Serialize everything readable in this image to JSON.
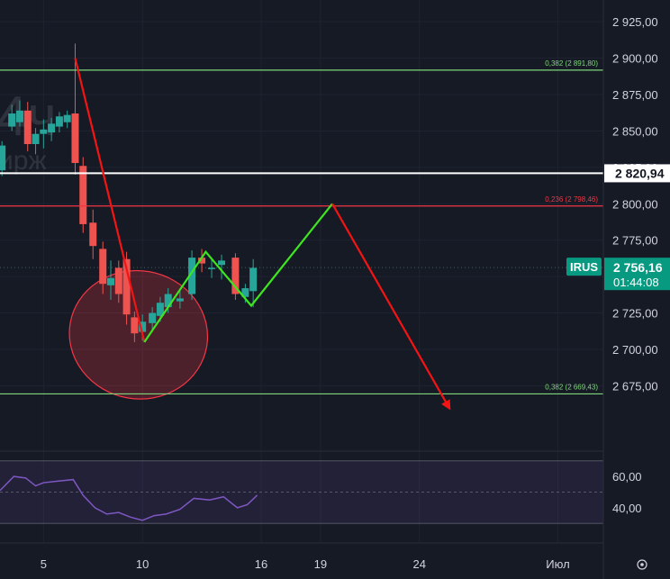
{
  "chart_data": {
    "type": "candlestick",
    "symbol": "IRUS",
    "watermark": {
      "interval": "4ч",
      "subtitle": "ирж"
    },
    "colors": {
      "background": "#161a25",
      "up": "#26a69a",
      "down": "#ef5350",
      "drawing_red": "#f41414",
      "drawing_green": "#3ee620",
      "fib_green": "#7fd67a",
      "fib_red": "#f23645",
      "price_label": "#089981",
      "rsi": "#7e57c2"
    },
    "price_axis": {
      "ylim": [
        2640,
        2935
      ],
      "ticks": [
        "2 925,00",
        "2 900,00",
        "2 875,00",
        "2 850,00",
        "2 825,00",
        "2 800,00",
        "2 775,00",
        "2 750,00",
        "2 725,00",
        "2 700,00",
        "2 675,00"
      ],
      "tick_values": [
        2925,
        2900,
        2875,
        2850,
        2825,
        2800,
        2775,
        2750,
        2725,
        2700,
        2675
      ]
    },
    "time_axis": {
      "xlim": [
        2.8,
        33.3
      ],
      "labels": [
        {
          "x": 5,
          "text": "5"
        },
        {
          "x": 10,
          "text": "10"
        },
        {
          "x": 16,
          "text": "16"
        },
        {
          "x": 19,
          "text": "19"
        },
        {
          "x": 24,
          "text": "24"
        },
        {
          "x": 31,
          "text": "Июл"
        }
      ]
    },
    "candles": [
      {
        "t": 2.9,
        "o": 2823,
        "h": 2843,
        "l": 2819,
        "c": 2840
      },
      {
        "t": 3.4,
        "o": 2853,
        "h": 2868,
        "l": 2850,
        "c": 2862
      },
      {
        "t": 3.8,
        "o": 2856,
        "h": 2871,
        "l": 2853,
        "c": 2864
      },
      {
        "t": 4.2,
        "o": 2864,
        "h": 2870,
        "l": 2836,
        "c": 2841
      },
      {
        "t": 4.6,
        "o": 2841,
        "h": 2852,
        "l": 2834,
        "c": 2848
      },
      {
        "t": 5.0,
        "o": 2848,
        "h": 2858,
        "l": 2838,
        "c": 2851
      },
      {
        "t": 5.4,
        "o": 2849,
        "h": 2859,
        "l": 2843,
        "c": 2855
      },
      {
        "t": 5.8,
        "o": 2853,
        "h": 2863,
        "l": 2849,
        "c": 2860
      },
      {
        "t": 6.2,
        "o": 2856,
        "h": 2864,
        "l": 2852,
        "c": 2861
      },
      {
        "t": 6.6,
        "o": 2862,
        "h": 2910,
        "l": 2820,
        "c": 2828
      },
      {
        "t": 7.0,
        "o": 2826,
        "h": 2832,
        "l": 2780,
        "c": 2786
      },
      {
        "t": 7.5,
        "o": 2787,
        "h": 2796,
        "l": 2762,
        "c": 2771
      },
      {
        "t": 8.0,
        "o": 2769,
        "h": 2774,
        "l": 2738,
        "c": 2745
      },
      {
        "t": 8.4,
        "o": 2744,
        "h": 2761,
        "l": 2734,
        "c": 2749
      },
      {
        "t": 8.8,
        "o": 2756,
        "h": 2761,
        "l": 2732,
        "c": 2738
      },
      {
        "t": 9.2,
        "o": 2762,
        "h": 2767,
        "l": 2717,
        "c": 2724
      },
      {
        "t": 9.6,
        "o": 2722,
        "h": 2726,
        "l": 2705,
        "c": 2711
      },
      {
        "t": 10.0,
        "o": 2712,
        "h": 2724,
        "l": 2706,
        "c": 2719
      },
      {
        "t": 10.5,
        "o": 2718,
        "h": 2729,
        "l": 2712,
        "c": 2725
      },
      {
        "t": 10.9,
        "o": 2723,
        "h": 2736,
        "l": 2719,
        "c": 2732
      },
      {
        "t": 11.3,
        "o": 2729,
        "h": 2742,
        "l": 2725,
        "c": 2738
      },
      {
        "t": 11.9,
        "o": 2733,
        "h": 2740,
        "l": 2728,
        "c": 2735
      },
      {
        "t": 12.5,
        "o": 2738,
        "h": 2768,
        "l": 2734,
        "c": 2763
      },
      {
        "t": 13.0,
        "o": 2763,
        "h": 2769,
        "l": 2753,
        "c": 2759
      },
      {
        "t": 13.5,
        "o": 2756,
        "h": 2762,
        "l": 2749,
        "c": 2756
      },
      {
        "t": 14.0,
        "o": 2758,
        "h": 2765,
        "l": 2748,
        "c": 2761
      },
      {
        "t": 14.7,
        "o": 2763,
        "h": 2766,
        "l": 2734,
        "c": 2738
      },
      {
        "t": 15.2,
        "o": 2736,
        "h": 2745,
        "l": 2732,
        "c": 2742
      },
      {
        "t": 15.6,
        "o": 2740,
        "h": 2762,
        "l": 2729,
        "c": 2756
      }
    ],
    "horizontal_lines": [
      {
        "price": 2891.8,
        "label": "0,382 (2 891,80)",
        "color": "#7fd67a"
      },
      {
        "price": 2798.46,
        "label": "0,236 (2 798,46)",
        "color": "#f23645"
      },
      {
        "price": 2669.43,
        "label": "0,382 (2 669,43)",
        "color": "#7fd67a"
      },
      {
        "price": 2820.94,
        "label": "2 820,94",
        "color": "#ffffff"
      }
    ],
    "current_price": {
      "value": 2756.16,
      "label": "2 756,16",
      "countdown": "01:44:08",
      "symbol": "IRUS"
    },
    "drawings": {
      "red_down": [
        {
          "t": 6.6,
          "p": 2900
        },
        {
          "t": 10.1,
          "p": 2705
        }
      ],
      "green_path": [
        {
          "t": 10.1,
          "p": 2705
        },
        {
          "t": 13.2,
          "p": 2767
        },
        {
          "t": 15.5,
          "p": 2730
        },
        {
          "t": 19.6,
          "p": 2800
        }
      ],
      "red_forecast": [
        {
          "t": 19.6,
          "p": 2800
        },
        {
          "t": 25.5,
          "p": 2660
        }
      ],
      "ellipse": {
        "t_center": 9.8,
        "p_center": 2710,
        "t_radius": 3.5,
        "p_radius": 44
      }
    },
    "rsi": {
      "ylim": [
        25,
        75
      ],
      "ticks": [
        "60,00",
        "40,00"
      ],
      "tick_values": [
        60,
        40
      ],
      "band": [
        30,
        70
      ],
      "midline": 50,
      "values": [
        {
          "t": 2.8,
          "v": 51
        },
        {
          "t": 3.5,
          "v": 60
        },
        {
          "t": 4.1,
          "v": 59
        },
        {
          "t": 4.6,
          "v": 54
        },
        {
          "t": 5.0,
          "v": 56
        },
        {
          "t": 5.7,
          "v": 57
        },
        {
          "t": 6.5,
          "v": 58
        },
        {
          "t": 7.0,
          "v": 48
        },
        {
          "t": 7.6,
          "v": 40
        },
        {
          "t": 8.2,
          "v": 36
        },
        {
          "t": 8.8,
          "v": 37
        },
        {
          "t": 9.4,
          "v": 34
        },
        {
          "t": 10.0,
          "v": 32
        },
        {
          "t": 10.6,
          "v": 35
        },
        {
          "t": 11.2,
          "v": 36
        },
        {
          "t": 11.9,
          "v": 39
        },
        {
          "t": 12.6,
          "v": 46
        },
        {
          "t": 13.4,
          "v": 45
        },
        {
          "t": 14.1,
          "v": 47
        },
        {
          "t": 14.8,
          "v": 40
        },
        {
          "t": 15.3,
          "v": 42
        },
        {
          "t": 15.8,
          "v": 48
        }
      ]
    }
  }
}
